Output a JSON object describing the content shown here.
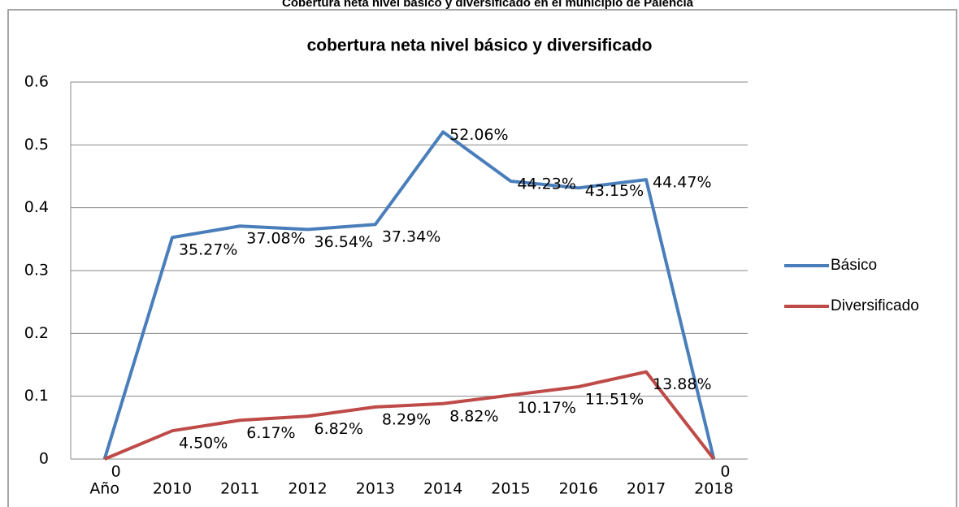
{
  "page_title": "Cobertura neta nivel básico y diversificado en el municipio de Palencia",
  "chart_data": {
    "type": "line",
    "title": "cobertura neta nivel básico y diversificado",
    "categories": [
      "Año",
      "2010",
      "2011",
      "2012",
      "2013",
      "2014",
      "2015",
      "2016",
      "2017",
      "2018"
    ],
    "series": [
      {
        "name": "Básico",
        "color": "#4a7ebb",
        "values": [
          0,
          0.3527,
          0.3708,
          0.3654,
          0.3734,
          0.5206,
          0.4423,
          0.4315,
          0.4447,
          0
        ],
        "value_labels": [
          null,
          "35.27%",
          "37.08%",
          "36.54%",
          "37.34%",
          "52.06%",
          "44.23%",
          "43.15%",
          "44.47%",
          null
        ]
      },
      {
        "name": "Diversificado",
        "color": "#be4b48",
        "values": [
          0,
          0.045,
          0.0617,
          0.0682,
          0.0829,
          0.0882,
          0.1017,
          0.1151,
          0.1388,
          0
        ],
        "value_labels": [
          "0",
          "4.50%",
          "6.17%",
          "6.82%",
          "8.29%",
          "8.82%",
          "10.17%",
          "11.51%",
          "13.88%",
          "0"
        ]
      }
    ],
    "ylim": [
      0,
      0.6
    ],
    "yticks": [
      0,
      0.1,
      0.2,
      0.3,
      0.4,
      0.5,
      0.6
    ],
    "grid": true,
    "legend": "right"
  }
}
